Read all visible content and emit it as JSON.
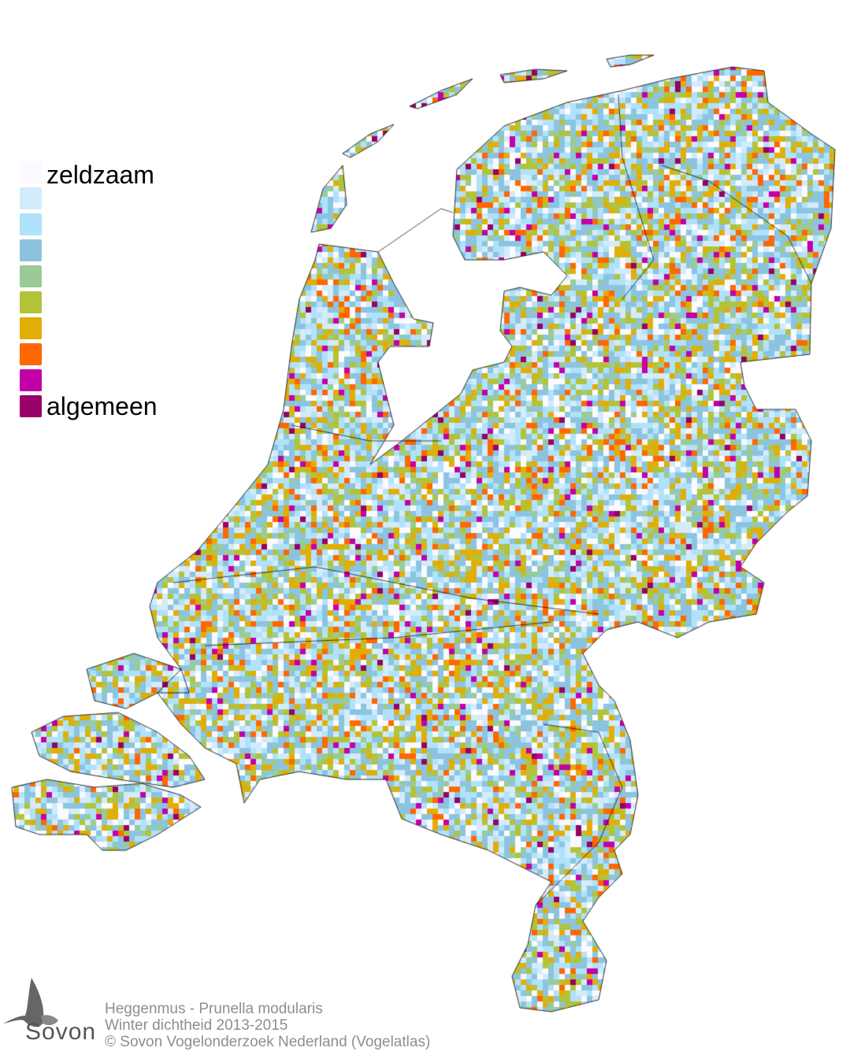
{
  "legend": {
    "top_label": "zeldzaam",
    "bottom_label": "algemeen",
    "colors": [
      "#fbfaff",
      "#d3ebfb",
      "#b1e2fb",
      "#8cc4e0",
      "#9acb96",
      "#b2c33a",
      "#e1ae07",
      "#ff6700",
      "#c300a7",
      "#960068"
    ]
  },
  "caption": {
    "line1": "Heggenmus - Prunella modularis",
    "line2": "Winter dichtheid 2013-2015",
    "line3": "© Sovon Vogelonderzoek Nederland (Vogelatlas)"
  },
  "logo": {
    "text": "Sovon"
  }
}
